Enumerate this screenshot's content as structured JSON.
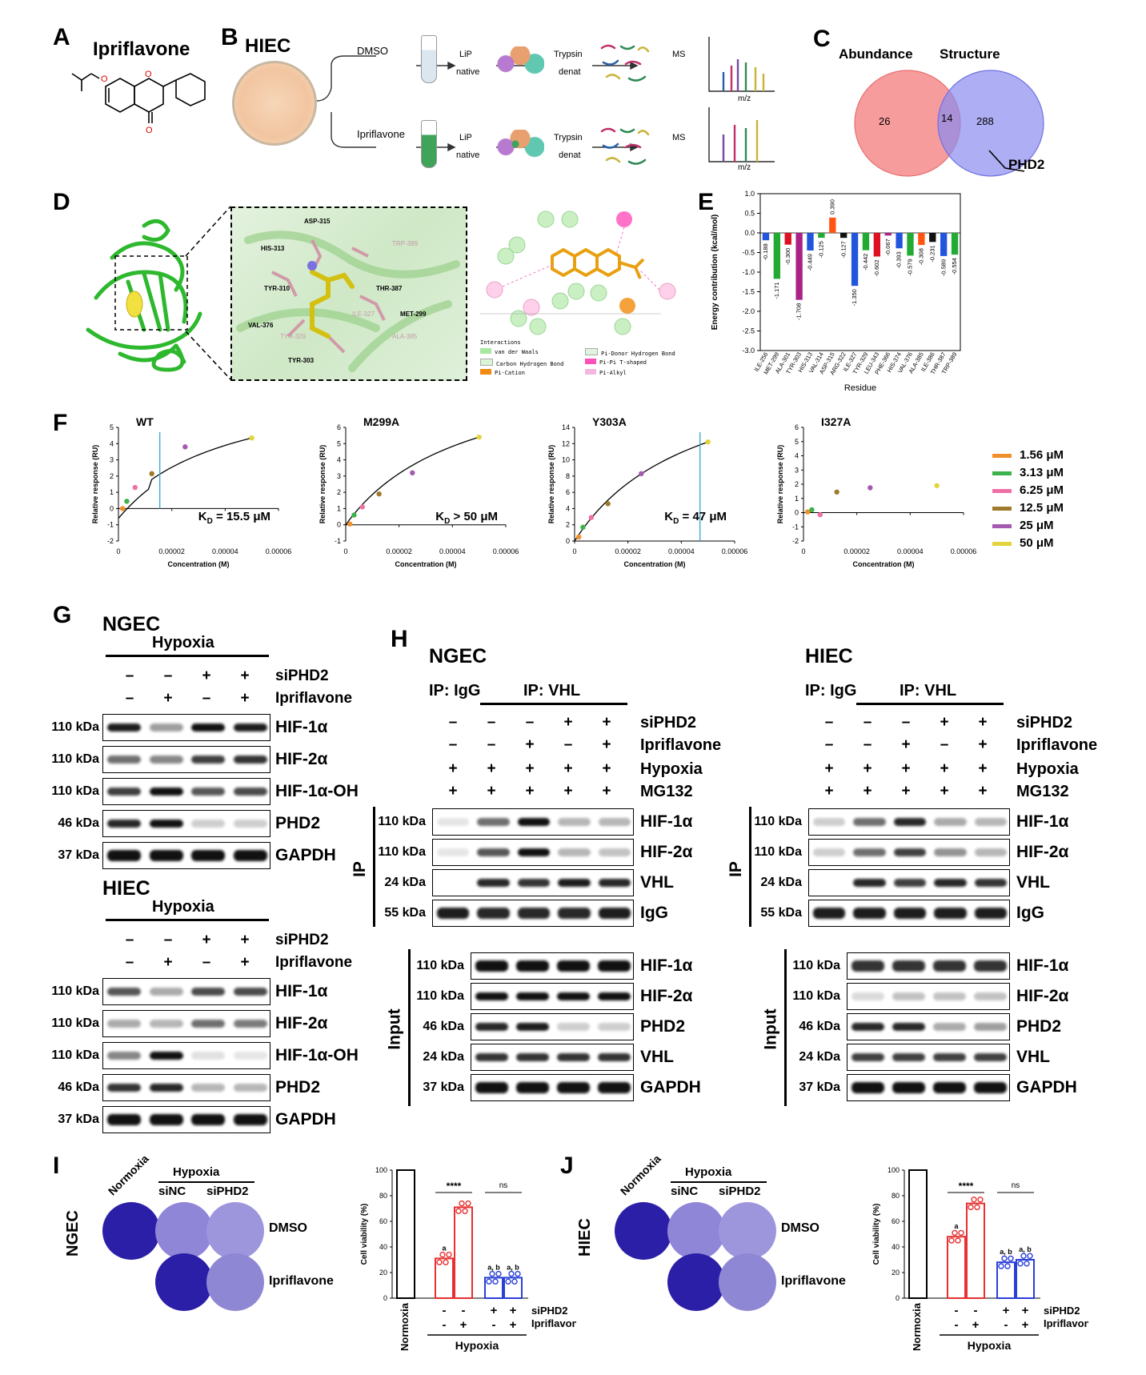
{
  "panels": {
    "A": "A",
    "B": "B",
    "C": "C",
    "D": "D",
    "E": "E",
    "F": "F",
    "G": "G",
    "H": "H",
    "I": "I",
    "J": "J"
  },
  "panelA": {
    "title": "Ipriflavone"
  },
  "panelB": {
    "cell": "HIEC",
    "row1_label": "DMSO",
    "row2_label": "Ipriflavone",
    "lip": "LiP",
    "native": "native",
    "trypsin": "Trypsin",
    "denat": "denat",
    "ms": "MS",
    "mz": "m/z"
  },
  "panelC": {
    "left": "Abundance",
    "right": "Structure",
    "n_left": "26",
    "n_overlap": "14",
    "n_right": "288",
    "callout": "PHD2"
  },
  "panelD": {
    "residues": [
      "ASP-315",
      "HIS-313",
      "TRP-389",
      "TYR-310",
      "THR-387",
      "ILE-327",
      "MET-299",
      "VAL-376",
      "TYR-329",
      "ALA-385",
      "TYR-303"
    ],
    "legend_title": "Interactions",
    "legend": [
      "van der Waals",
      "Pi-Donor Hydrogen Bond",
      "Carbon Hydrogen Bond",
      "Pi-Pi T-shaped",
      "Pi-Cation",
      "Pi-Alkyl"
    ]
  },
  "chart_data": [
    {
      "type": "bar",
      "id": "E",
      "title": "",
      "xlabel": "Residue",
      "ylabel": "Energy contribution (kcal/mol)",
      "ylim": [
        -3.0,
        1.0
      ],
      "yticks": [
        "1.0",
        "0.5",
        "0.0",
        "-0.5",
        "-1.0",
        "-1.5",
        "-2.0",
        "-2.5",
        "-3.0"
      ],
      "categories": [
        "ILE-256",
        "MET-299",
        "ALA-301",
        "TYR-303",
        "HIS-313",
        "VAL-314",
        "ASP-315",
        "ARG-322",
        "ILE-327",
        "TYR-329",
        "LEU-343",
        "PHE-366",
        "HIS-374",
        "VAL-376",
        "ALA-385",
        "ILE-386",
        "THR-387",
        "TRP-389"
      ],
      "values": [
        -0.188,
        -1.171,
        -0.3,
        -1.708,
        -0.449,
        -0.125,
        0.39,
        -0.127,
        -1.35,
        -0.442,
        -0.602,
        -0.067,
        -0.393,
        -0.579,
        -0.308,
        -0.231,
        -0.589,
        -0.554
      ],
      "value_labels": [
        "-0.188",
        "-1.171",
        "-0.300",
        "-1.708",
        "-0.449",
        "-0.125",
        "0.390",
        "-0.127",
        "-1.350",
        "-0.442",
        "-0.602",
        "-0.067",
        "-0.393",
        "-0.579",
        "-0.308",
        "-0.231",
        "-0.589",
        "-0.554"
      ],
      "colors": [
        "#2255dd",
        "#22aa33",
        "#dd1122",
        "#aa2288",
        "#2255dd",
        "#22aa33",
        "#ff5511",
        "#111111",
        "#2255dd",
        "#22aa33",
        "#dd1122",
        "#aa2288",
        "#2255dd",
        "#22aa33",
        "#ff5511",
        "#111111",
        "#2255dd",
        "#22aa33"
      ]
    },
    {
      "type": "scatter",
      "id": "F-WT",
      "title": "WT",
      "xlabel": "Concentration (M)",
      "ylabel": "Relative response (RU)",
      "xlim": [
        0,
        6e-05
      ],
      "ylim": [
        -2,
        5
      ],
      "kd_prefix": "K",
      "kd_sub": "D",
      "kd_text": " = 15.5 μM",
      "kd_line": 1.55e-05,
      "x": [
        1.56e-06,
        3.13e-06,
        6.25e-06,
        1.25e-05,
        2.5e-05,
        5e-05
      ],
      "y": [
        0.0,
        0.45,
        1.3,
        2.15,
        3.8,
        4.35
      ]
    },
    {
      "type": "scatter",
      "id": "F-M299A",
      "title": "M299A",
      "xlabel": "Concentration (M)",
      "ylabel": "Relative response (RU)",
      "xlim": [
        0,
        6e-05
      ],
      "ylim": [
        -1,
        6
      ],
      "kd_prefix": "K",
      "kd_sub": "D",
      "kd_text": " > 50 μM",
      "x": [
        1.56e-06,
        3.13e-06,
        6.25e-06,
        1.25e-05,
        2.5e-05,
        5e-05
      ],
      "y": [
        0.05,
        0.6,
        1.1,
        1.9,
        3.2,
        5.4
      ]
    },
    {
      "type": "scatter",
      "id": "F-Y303A",
      "title": "Y303A",
      "xlabel": "Concentration (M)",
      "ylabel": "Relative response (RU)",
      "xlim": [
        0,
        6e-05
      ],
      "ylim": [
        0,
        14
      ],
      "kd_prefix": "K",
      "kd_sub": "D",
      "kd_text": " = 47 μM",
      "kd_line": 4.7e-05,
      "x": [
        1.56e-06,
        3.13e-06,
        6.25e-06,
        1.25e-05,
        2.5e-05,
        5e-05
      ],
      "y": [
        0.5,
        1.7,
        2.9,
        4.6,
        8.3,
        12.2
      ]
    },
    {
      "type": "scatter",
      "id": "F-I327A",
      "title": "I327A",
      "xlabel": "Concentration (M)",
      "ylabel": "Relative response (RU)",
      "xlim": [
        0,
        6e-05
      ],
      "ylim": [
        -2,
        6
      ],
      "x": [
        1.56e-06,
        3.13e-06,
        6.25e-06,
        1.25e-05,
        2.5e-05,
        5e-05
      ],
      "y": [
        0.05,
        0.2,
        -0.15,
        1.45,
        1.75,
        1.9
      ]
    },
    {
      "type": "bar",
      "id": "I-viability",
      "ylabel": "Cell viability (%)",
      "ylim": [
        0,
        100
      ],
      "yticks": [
        "0",
        "20",
        "40",
        "60",
        "80",
        "100"
      ],
      "categories": [
        "Normoxia",
        "Hypoxia siNC DMSO",
        "Hypoxia siNC Ipriflavone",
        "Hypoxia siPHD2 DMSO",
        "Hypoxia siPHD2 Ipriflavone"
      ],
      "values": [
        100,
        31,
        71,
        16,
        16
      ],
      "colors": [
        "#000000",
        "#e83030",
        "#e83030",
        "#2a3fd6",
        "#2a3fd6"
      ],
      "annotations": [
        "",
        "a",
        "",
        "a, b",
        "a, b"
      ],
      "sig": [
        "****",
        "ns"
      ]
    },
    {
      "type": "bar",
      "id": "J-viability",
      "ylabel": "Cell viability (%)",
      "ylim": [
        0,
        100
      ],
      "yticks": [
        "0",
        "20",
        "40",
        "60",
        "80",
        "100"
      ],
      "categories": [
        "Normoxia",
        "Hypoxia siNC DMSO",
        "Hypoxia siNC Ipriflavone",
        "Hypoxia siPHD2 DMSO",
        "Hypoxia siPHD2 Ipriflavone"
      ],
      "values": [
        100,
        48,
        74,
        28,
        30
      ],
      "colors": [
        "#000000",
        "#e83030",
        "#e83030",
        "#2a3fd6",
        "#2a3fd6"
      ],
      "annotations": [
        "",
        "a",
        "",
        "a, b",
        "a, b"
      ],
      "sig": [
        "****",
        "ns"
      ]
    }
  ],
  "panelF": {
    "legend": [
      "1.56 μM",
      "3.13 μM",
      "6.25 μM",
      "12.5 μM",
      "25 μM",
      "50 μM"
    ],
    "legend_colors": [
      "#f0902a",
      "#3cb34a",
      "#ef6fa6",
      "#a07a2c",
      "#a35ab0",
      "#e2d43a"
    ],
    "xticks": [
      "0",
      "0.00002",
      "0.00004",
      "0.00006"
    ]
  },
  "panelG": {
    "ngec": "NGEC",
    "hiec": "HIEC",
    "hypoxia": "Hypoxia",
    "siPHD2": "siPHD2",
    "ipriflavone": "Ipriflavone",
    "si_signs": [
      "–",
      "–",
      "+",
      "+"
    ],
    "ipri_signs": [
      "–",
      "+",
      "–",
      "+"
    ],
    "rows": [
      {
        "kda": "110 kDa",
        "name": "HIF-1α"
      },
      {
        "kda": "110 kDa",
        "name": "HIF-2α"
      },
      {
        "kda": "110 kDa",
        "name": "HIF-1α-OH"
      },
      {
        "kda": "46 kDa",
        "name": "PHD2"
      },
      {
        "kda": "37 kDa",
        "name": "GAPDH"
      }
    ]
  },
  "panelH": {
    "ngec": "NGEC",
    "hiec": "HIEC",
    "ip_igg": "IP: IgG",
    "ip_vhl": "IP: VHL",
    "ip": "IP",
    "input": "Input",
    "si_signs": [
      "–",
      "–",
      "–",
      "+",
      "+"
    ],
    "ipri_signs": [
      "–",
      "–",
      "+",
      "–",
      "+"
    ],
    "hyp_signs": [
      "+",
      "+",
      "+",
      "+",
      "+"
    ],
    "mg_signs": [
      "+",
      "+",
      "+",
      "+",
      "+"
    ],
    "conds": [
      "siPHD2",
      "Ipriflavone",
      "Hypoxia",
      "MG132"
    ],
    "ip_rows": [
      {
        "kda": "110 kDa",
        "name": "HIF-1α"
      },
      {
        "kda": "110 kDa",
        "name": "HIF-2α"
      },
      {
        "kda": "24 kDa",
        "name": "VHL"
      },
      {
        "kda": "55 kDa",
        "name": "IgG"
      }
    ],
    "input_rows": [
      {
        "kda": "110 kDa",
        "name": "HIF-1α"
      },
      {
        "kda": "110 kDa",
        "name": "HIF-2α"
      },
      {
        "kda": "46 kDa",
        "name": "PHD2"
      },
      {
        "kda": "24 kDa",
        "name": "VHL"
      },
      {
        "kda": "37 kDa",
        "name": "GAPDH"
      }
    ]
  },
  "panelI": {
    "cell": "NGEC",
    "normoxia": "Normoxia",
    "hypoxia": "Hypoxia",
    "sinc": "siNC",
    "siphd2": "siPHD2",
    "dmso": "DMSO",
    "ipri": "Ipriflavone",
    "x_si": "siPHD2",
    "x_ipri": "Ipriflavone",
    "x_normoxia": "Normoxia",
    "x_hypoxia": "Hypoxia",
    "si_signs": [
      "-",
      "-",
      "+",
      "+"
    ],
    "ipri_signs": [
      "-",
      "+",
      "-",
      "+"
    ]
  },
  "panelJ": {
    "cell": "HIEC",
    "normoxia": "Normoxia",
    "hypoxia": "Hypoxia",
    "sinc": "siNC",
    "siphd2": "siPHD2",
    "dmso": "DMSO",
    "ipri": "Ipriflavone",
    "x_si": "siPHD2",
    "x_ipri": "Ipriflavone",
    "x_normoxia": "Normoxia",
    "x_hypoxia": "Hypoxia",
    "si_signs": [
      "-",
      "-",
      "+",
      "+"
    ],
    "ipri_signs": [
      "-",
      "+",
      "-",
      "+"
    ]
  }
}
